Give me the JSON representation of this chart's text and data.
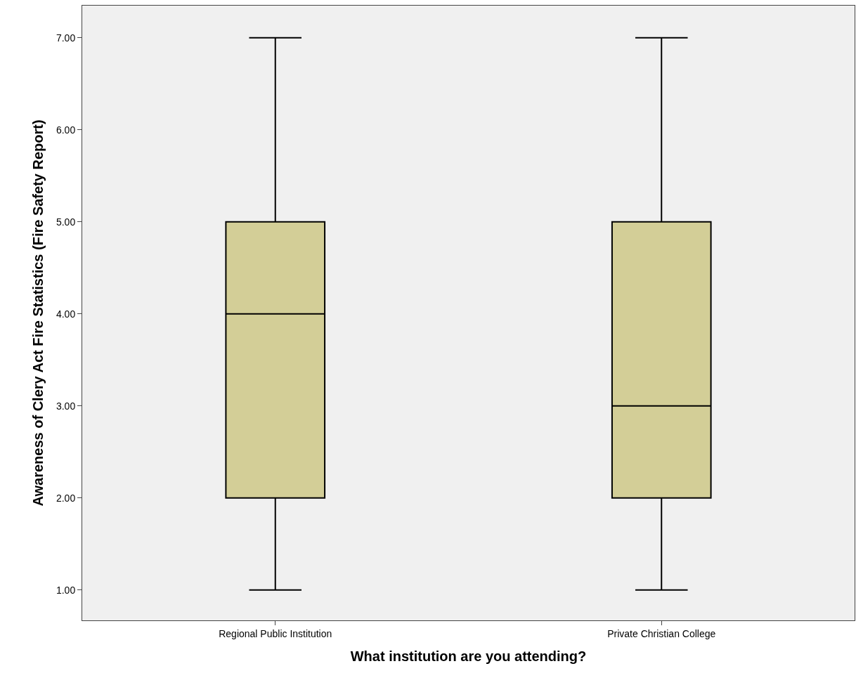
{
  "chart_data": {
    "type": "box",
    "xlabel": "What institution are you attending?",
    "ylabel": "Awareness of Clery Act Fire Statistics (Fire Safety Report)",
    "categories": [
      "Regional Public Institution",
      "Private Christian College"
    ],
    "boxes": [
      {
        "low": 1,
        "q1": 2,
        "median": 4,
        "q3": 5,
        "high": 7
      },
      {
        "low": 1,
        "q1": 2,
        "median": 3,
        "q3": 5,
        "high": 7
      }
    ],
    "color": "#d3ce97",
    "ylim": [
      0.67,
      7.35
    ],
    "yticks": [
      {
        "value": 1,
        "label": "1.00"
      },
      {
        "value": 2,
        "label": "2.00"
      },
      {
        "value": 3,
        "label": "3.00"
      },
      {
        "value": 4,
        "label": "4.00"
      },
      {
        "value": 5,
        "label": "5.00"
      },
      {
        "value": 6,
        "label": "6.00"
      },
      {
        "value": 7,
        "label": "7.00"
      }
    ]
  }
}
